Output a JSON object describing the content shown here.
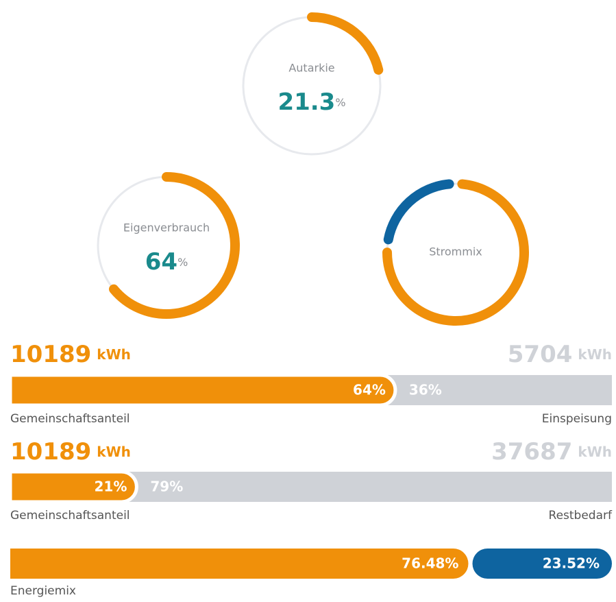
{
  "gauges": [
    {
      "label": "Autarkie",
      "value": 21.3,
      "unit": "%"
    },
    {
      "label": "Eigenverbrauch",
      "value": 64,
      "unit": "%"
    },
    {
      "label": "Strommix"
    }
  ],
  "bars": [
    {
      "left": {
        "amount": 10189,
        "unit": "kWh",
        "percent": 64,
        "percent_label": "64%",
        "label": "Gemeinschaftsanteil"
      },
      "right": {
        "amount": 5704,
        "unit": "kWh",
        "percent": 36,
        "percent_label": "36%",
        "label": "Einspeisung"
      }
    },
    {
      "left": {
        "amount": 10189,
        "unit": "kWh",
        "percent": 21,
        "percent_label": "21%",
        "label": "Gemeinschaftsanteil"
      },
      "right": {
        "amount": 37687,
        "unit": "kWh",
        "percent": 79,
        "percent_label": "79%",
        "label": "Restbedarf"
      }
    },
    {
      "left": {
        "percent": 76.48,
        "percent_label": "76.48%",
        "color": "#f0900a"
      },
      "right": {
        "percent": 23.52,
        "percent_label": "23.52%",
        "color": "#0e64a0"
      },
      "label": "Energiemix"
    }
  ]
}
